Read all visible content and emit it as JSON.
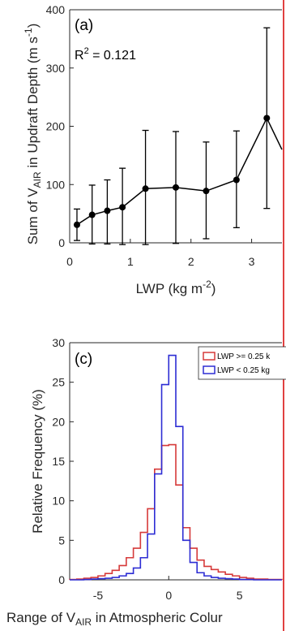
{
  "colors": {
    "page_border": "#e04040",
    "lwp_high": "#d63a3a",
    "lwp_low": "#2d2dd4",
    "axis": "#262626",
    "series": "#000000"
  },
  "chart_data": [
    {
      "type": "line",
      "panel_label": "(a)",
      "annotation": "R² = 0.121",
      "ylabel": "Sum of V_AIR in Updraft Depth (m s^-1)",
      "xlabel": "LWP (kg m^-2)",
      "xlim": [
        0,
        3.5
      ],
      "ylim": [
        0,
        400
      ],
      "xticks": [
        "0",
        "1",
        "2",
        "3"
      ],
      "yticks": [
        "0",
        "100",
        "200",
        "300",
        "400"
      ],
      "x": [
        0.12,
        0.37,
        0.62,
        0.87,
        1.25,
        1.75,
        2.25,
        2.75,
        3.25,
        3.5
      ],
      "y": [
        31,
        48,
        55,
        61,
        93,
        95,
        89,
        108,
        214,
        160
      ],
      "err_low": [
        4,
        -2,
        -2,
        -3,
        -3,
        -1,
        7,
        26,
        59,
        null
      ],
      "err_high": [
        58,
        99,
        108,
        128,
        193,
        191,
        173,
        192,
        369,
        null
      ],
      "grid": false
    },
    {
      "type": "histogram",
      "panel_label": "(c)",
      "ylabel": "Relative Frequency (%)",
      "xlabel": "Range of V_AIR in Atmospheric Colur",
      "xlim": [
        -7,
        8
      ],
      "ylim": [
        0,
        30
      ],
      "xticks": [
        "-5",
        "0",
        "5"
      ],
      "yticks": [
        "0",
        "5",
        "10",
        "15",
        "20",
        "25",
        "30"
      ],
      "bin_edges": [
        -7,
        -6.5,
        -6,
        -5.5,
        -5,
        -4.5,
        -4,
        -3.5,
        -3,
        -2.5,
        -2,
        -1.5,
        -1,
        -0.5,
        0,
        0.5,
        1,
        1.5,
        2,
        2.5,
        3,
        3.5,
        4,
        4.5,
        5,
        5.5,
        6,
        6.5,
        7,
        7.5,
        8
      ],
      "series": [
        {
          "name": "LWP >= 0.25 k",
          "color": "#d63a3a",
          "values": [
            0.05,
            0.1,
            0.2,
            0.3,
            0.5,
            0.8,
            1.2,
            1.8,
            2.8,
            4.0,
            6.0,
            9.0,
            14.0,
            17.0,
            17.1,
            12.0,
            6.6,
            4.0,
            2.5,
            1.7,
            1.3,
            1.0,
            0.7,
            0.5,
            0.3,
            0.2,
            0.1,
            0.1,
            0.05,
            0.05
          ]
        },
        {
          "name": "LWP < 0.25 kg",
          "color": "#2d2dd4",
          "values": [
            0.0,
            0.0,
            0.05,
            0.1,
            0.15,
            0.2,
            0.3,
            0.5,
            0.8,
            1.5,
            2.8,
            5.8,
            13.4,
            24.7,
            28.4,
            19.4,
            5.0,
            2.2,
            0.9,
            0.5,
            0.3,
            0.2,
            0.15,
            0.1,
            0.05,
            0.05,
            0.0,
            0.0,
            0.0,
            0.0
          ]
        }
      ],
      "legend_position": "top-right",
      "grid": false
    }
  ]
}
